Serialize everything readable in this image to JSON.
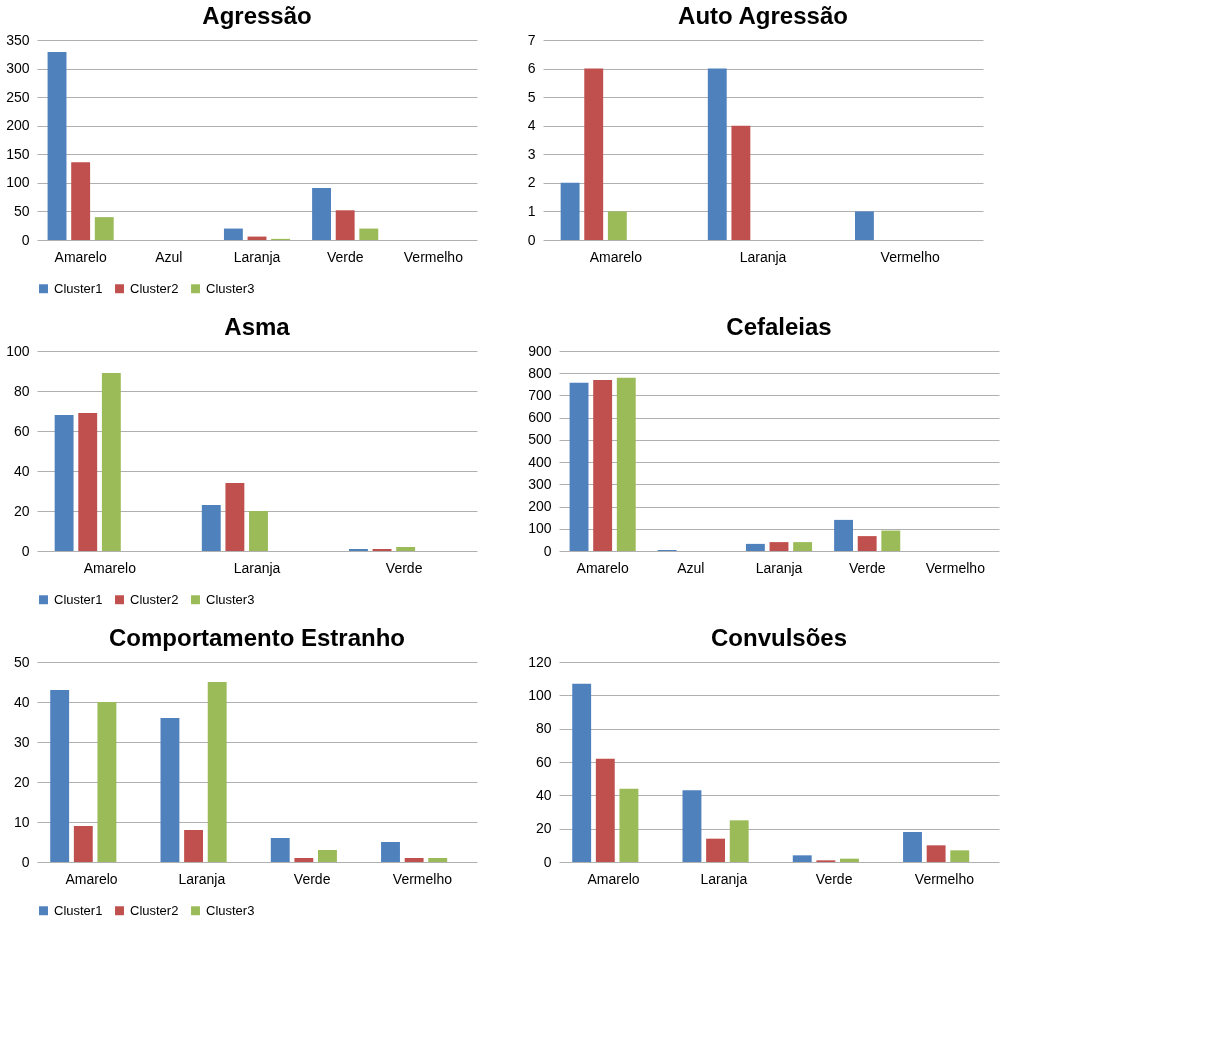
{
  "chart_data": [
    {
      "type": "bar",
      "title": "Agressão",
      "categories": [
        "Amarelo",
        "Azul",
        "Laranja",
        "Verde",
        "Vermelho"
      ],
      "ylim": [
        0,
        350
      ],
      "yticks": [
        0,
        50,
        100,
        150,
        200,
        250,
        300,
        350
      ],
      "grid": "y",
      "legend": "bottom",
      "series": [
        {
          "name": "Cluster1",
          "color": "#4f81bd",
          "values": [
            329,
            null,
            20,
            91,
            null
          ]
        },
        {
          "name": "Cluster2",
          "color": "#c0504d",
          "values": [
            136,
            null,
            6,
            52,
            null
          ]
        },
        {
          "name": "Cluster3",
          "color": "#9bbb59",
          "values": [
            40,
            null,
            2,
            20,
            null
          ]
        }
      ]
    },
    {
      "type": "bar",
      "title": "Auto Agressão",
      "categories": [
        "Amarelo",
        "Laranja",
        "Vermelho"
      ],
      "ylim": [
        0,
        7
      ],
      "yticks": [
        0,
        1,
        2,
        3,
        4,
        5,
        6,
        7
      ],
      "grid": "y",
      "legend": "bottom",
      "series": [
        {
          "name": "Cluster1",
          "color": "#4f81bd",
          "values": [
            2,
            6,
            1
          ]
        },
        {
          "name": "Cluster2",
          "color": "#c0504d",
          "values": [
            6,
            4,
            null
          ]
        },
        {
          "name": "Cluster3",
          "color": "#9bbb59",
          "values": [
            1,
            null,
            null
          ]
        }
      ]
    },
    {
      "type": "bar",
      "title": "Asma",
      "categories": [
        "Amarelo",
        "Laranja",
        "Verde"
      ],
      "ylim": [
        0,
        100
      ],
      "yticks": [
        0,
        20,
        40,
        60,
        80,
        100
      ],
      "grid": "y",
      "legend": "bottom",
      "series": [
        {
          "name": "Cluster1",
          "color": "#4f81bd",
          "values": [
            68,
            23,
            1
          ]
        },
        {
          "name": "Cluster2",
          "color": "#c0504d",
          "values": [
            69,
            34,
            1
          ]
        },
        {
          "name": "Cluster3",
          "color": "#9bbb59",
          "values": [
            89,
            20,
            2
          ]
        }
      ]
    },
    {
      "type": "bar",
      "title": "Cefaleias",
      "categories": [
        "Amarelo",
        "Azul",
        "Laranja",
        "Verde",
        "Vermelho"
      ],
      "ylim": [
        0,
        900
      ],
      "yticks": [
        0,
        100,
        200,
        300,
        400,
        500,
        600,
        700,
        800,
        900
      ],
      "grid": "y",
      "legend": "bottom",
      "series": [
        {
          "name": "Cluster1",
          "color": "#4f81bd",
          "values": [
            757,
            4,
            32,
            140,
            null
          ]
        },
        {
          "name": "Cluster2",
          "color": "#c0504d",
          "values": [
            770,
            null,
            40,
            67,
            null
          ]
        },
        {
          "name": "Cluster3",
          "color": "#9bbb59",
          "values": [
            780,
            null,
            40,
            92,
            null
          ]
        }
      ]
    },
    {
      "type": "bar",
      "title": "Comportamento Estranho",
      "categories": [
        "Amarelo",
        "Laranja",
        "Verde",
        "Vermelho"
      ],
      "ylim": [
        0,
        50
      ],
      "yticks": [
        0,
        10,
        20,
        30,
        40,
        50
      ],
      "grid": "y",
      "legend": "bottom",
      "series": [
        {
          "name": "Cluster1",
          "color": "#4f81bd",
          "values": [
            43,
            36,
            6,
            5
          ]
        },
        {
          "name": "Cluster2",
          "color": "#c0504d",
          "values": [
            9,
            8,
            1,
            1
          ]
        },
        {
          "name": "Cluster3",
          "color": "#9bbb59",
          "values": [
            40,
            45,
            3,
            1
          ]
        }
      ]
    },
    {
      "type": "bar",
      "title": "Convulsões",
      "categories": [
        "Amarelo",
        "Laranja",
        "Verde",
        "Vermelho"
      ],
      "ylim": [
        0,
        120
      ],
      "yticks": [
        0,
        20,
        40,
        60,
        80,
        100,
        120
      ],
      "grid": "y",
      "legend": "bottom",
      "series": [
        {
          "name": "Cluster1",
          "color": "#4f81bd",
          "values": [
            107,
            43,
            4,
            18
          ]
        },
        {
          "name": "Cluster2",
          "color": "#c0504d",
          "values": [
            62,
            14,
            1,
            10
          ]
        },
        {
          "name": "Cluster3",
          "color": "#9bbb59",
          "values": [
            44,
            25,
            2,
            7
          ]
        }
      ]
    }
  ]
}
